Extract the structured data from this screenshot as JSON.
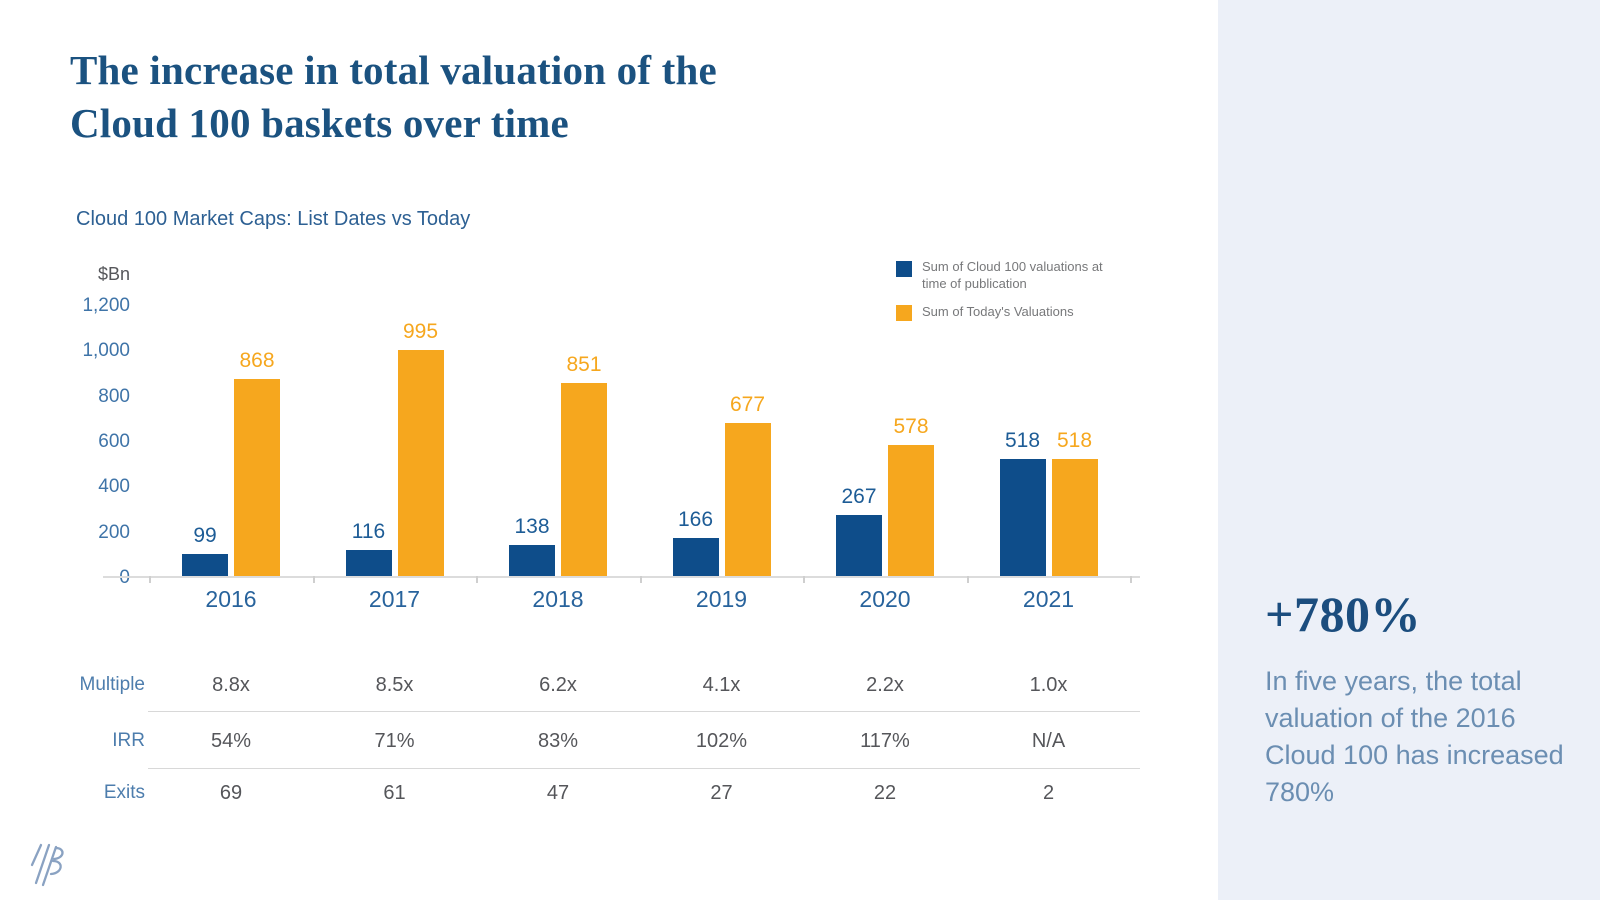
{
  "header": {
    "title_lines": [
      "The increase in total valuation of the",
      "Cloud 100 baskets over time"
    ]
  },
  "chart_data": {
    "type": "bar",
    "title": "Cloud 100 Market Caps: List Dates vs Today",
    "unit_label": "$Bn",
    "categories": [
      "2016",
      "2017",
      "2018",
      "2019",
      "2020",
      "2021"
    ],
    "series": [
      {
        "name": "Sum of Cloud 100 valuations at time of publication",
        "color": "#0e4d8a",
        "label_color": "#1d5c96",
        "values": [
          99,
          116,
          138,
          166,
          267,
          518
        ]
      },
      {
        "name": "Sum of Today's Valuations",
        "color": "#f6a71e",
        "label_color": "#f6a71e",
        "values": [
          868,
          995,
          851,
          677,
          578,
          518
        ]
      }
    ],
    "ylim": [
      0,
      1200
    ],
    "yticks": [
      {
        "value": 1200,
        "label": "1,200"
      },
      {
        "value": 1000,
        "label": "1,000"
      },
      {
        "value": 800,
        "label": "800"
      },
      {
        "value": 600,
        "label": "600"
      },
      {
        "value": 400,
        "label": "400"
      },
      {
        "value": 200,
        "label": "200"
      },
      {
        "value": 0,
        "label": "0"
      }
    ],
    "grid": false,
    "legend_position": "top-right",
    "data_labels": true
  },
  "table": {
    "rows": [
      {
        "label": "Multiple",
        "values": [
          "8.8x",
          "8.5x",
          "6.2x",
          "4.1x",
          "2.2x",
          "1.0x"
        ]
      },
      {
        "label": "IRR",
        "values": [
          "54%",
          "71%",
          "83%",
          "102%",
          "117%",
          "N/A"
        ]
      },
      {
        "label": "Exits",
        "values": [
          "69",
          "61",
          "47",
          "27",
          "22",
          "2"
        ]
      }
    ]
  },
  "sidebar": {
    "stat": "+780%",
    "description": "In five years, the total valuation of the 2016 Cloud 100 has increased 780%"
  },
  "colors": {
    "title_blue": "#1b5280",
    "bar_blue": "#0e4d8a",
    "bar_yellow": "#f6a71e",
    "axis_label_blue": "#3f74a8",
    "table_label_blue": "#4d7dad",
    "value_gray": "#55565a",
    "legend_gray": "#77787a",
    "sidebar_bg": "#ecf0f8",
    "sidebar_text": "#6b8eb2",
    "logo_blue": "#8aa2c2"
  }
}
